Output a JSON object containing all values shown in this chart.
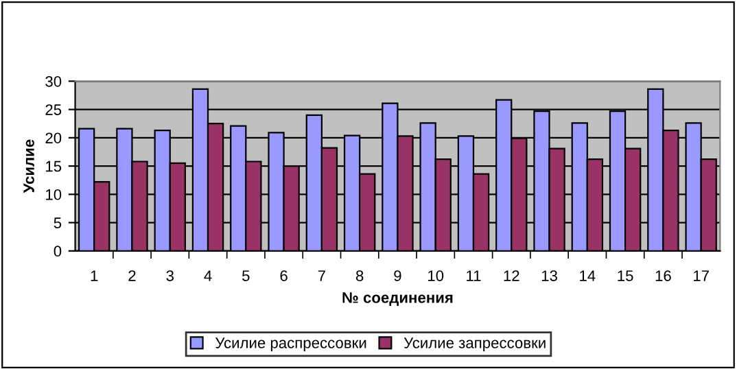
{
  "chart_data": {
    "type": "bar",
    "xlabel": "№ соединения",
    "ylabel": "Усилие",
    "categories": [
      "1",
      "2",
      "3",
      "4",
      "5",
      "6",
      "7",
      "8",
      "9",
      "10",
      "11",
      "12",
      "13",
      "14",
      "15",
      "16",
      "17"
    ],
    "series": [
      {
        "name": "Усилие распрессовки",
        "color": "#9999ff",
        "values": [
          21.6,
          21.6,
          21.3,
          28.6,
          22.1,
          20.9,
          24.0,
          20.4,
          26.1,
          22.6,
          20.3,
          26.7,
          24.7,
          22.6,
          24.7,
          28.6,
          22.6
        ]
      },
      {
        "name": "Усилие запрессовки",
        "color": "#993366",
        "values": [
          12.2,
          15.8,
          15.5,
          22.5,
          15.8,
          15.0,
          18.2,
          13.6,
          20.3,
          16.2,
          13.6,
          19.9,
          18.1,
          16.2,
          18.1,
          21.3,
          16.2
        ]
      }
    ],
    "ylim": [
      0,
      30
    ],
    "yticks": [
      0,
      5,
      10,
      15,
      20,
      25,
      30
    ],
    "grid": "y",
    "legend": "bottom"
  }
}
